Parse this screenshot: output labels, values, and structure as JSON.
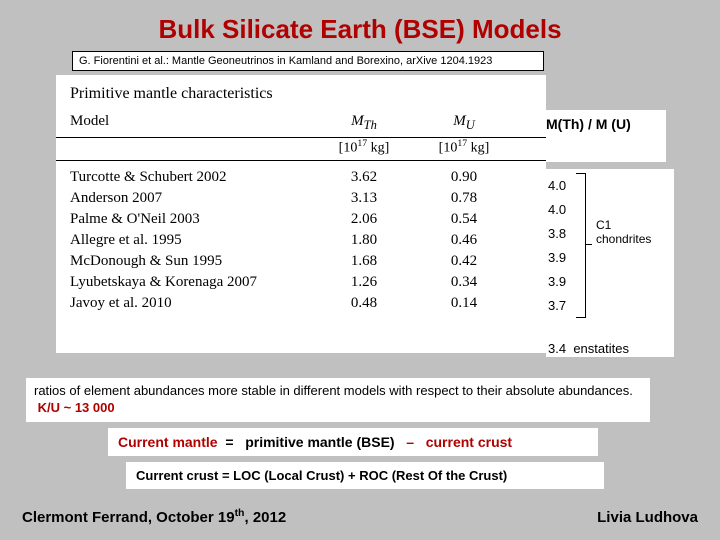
{
  "title": "Bulk Silicate Earth (BSE) Models",
  "citation": "G. Fiorentini et al.: Mantle Geoneutrinos in Kamland and Borexino, arXive 1204.1923",
  "table": {
    "title": "Primitive mantle characteristics",
    "col_model": "Model",
    "col_mth_html": "M<sub>Th</sub>",
    "col_mu_html": "M<sub>U</sub>",
    "unit_html": "[10<sup>17</sup> kg]",
    "rows": [
      {
        "model": "Turcotte & Schubert 2002",
        "mth": "3.62",
        "mu": "0.90"
      },
      {
        "model": "Anderson 2007",
        "mth": "3.13",
        "mu": "0.78"
      },
      {
        "model": "Palme & O'Neil 2003",
        "mth": "2.06",
        "mu": "0.54"
      },
      {
        "model": "Allegre et al. 1995",
        "mth": "1.80",
        "mu": "0.46"
      },
      {
        "model": "McDonough & Sun 1995",
        "mth": "1.68",
        "mu": "0.42"
      },
      {
        "model": "Lyubetskaya & Korenaga 2007",
        "mth": "1.26",
        "mu": "0.34"
      },
      {
        "model": "Javoy et al. 2010",
        "mth": "0.48",
        "mu": "0.14"
      }
    ]
  },
  "ratio_header": "M(Th) / M (U)",
  "ratios": [
    "4.0",
    "4.0",
    "3.8",
    "3.9",
    "3.9",
    "3.7",
    "3.4"
  ],
  "group_c1": "C1\nchondrites",
  "group_enst": "enstatites",
  "note_text": "ratios of element abundances more stable in different models with respect to their absolute abundances.",
  "note_ku": "K/U ~ 13 000",
  "eq_lhs": "Current mantle",
  "eq_mid": "primitive mantle  (BSE)",
  "eq_rhs": "current crust",
  "crust_eq": "Current crust = LOC (Local Crust) + ROC (Rest Of the Crust)",
  "footer_left_html": "Clermont Ferrand, October 19<sup>th</sup>, 2012",
  "footer_right": "Livia Ludhova",
  "colors": {
    "accent": "#b00000",
    "bg": "#c0c0c0"
  }
}
